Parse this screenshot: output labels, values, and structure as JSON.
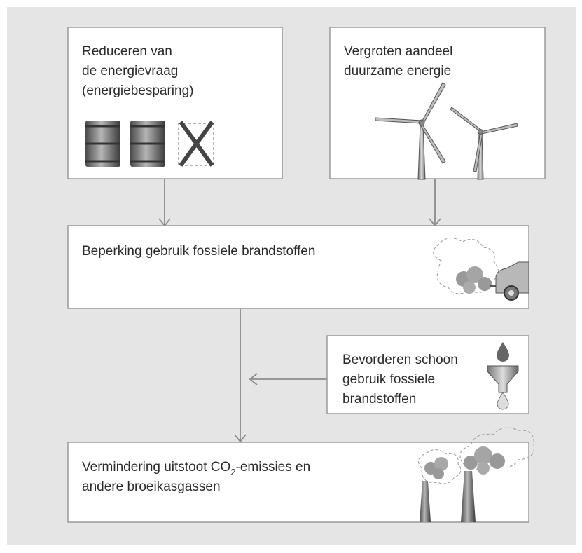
{
  "nodes": [
    {
      "lines": [
        "Reduceren van",
        "de energievraag",
        "(energiebesparing)"
      ]
    },
    {
      "lines": [
        "Vergroten aandeel",
        "duurzame energie"
      ]
    },
    {
      "lines": [
        "Beperking gebruik fossiele brandstoffen"
      ]
    },
    {
      "lines": [
        "Bevorderen schoon",
        "gebruik fossiele",
        "brandstoffen"
      ]
    },
    {
      "lines": [
        [
          "Vermindering uitstoot CO",
          "2",
          "-emissies en"
        ],
        "andere broeikasgassen"
      ]
    }
  ]
}
